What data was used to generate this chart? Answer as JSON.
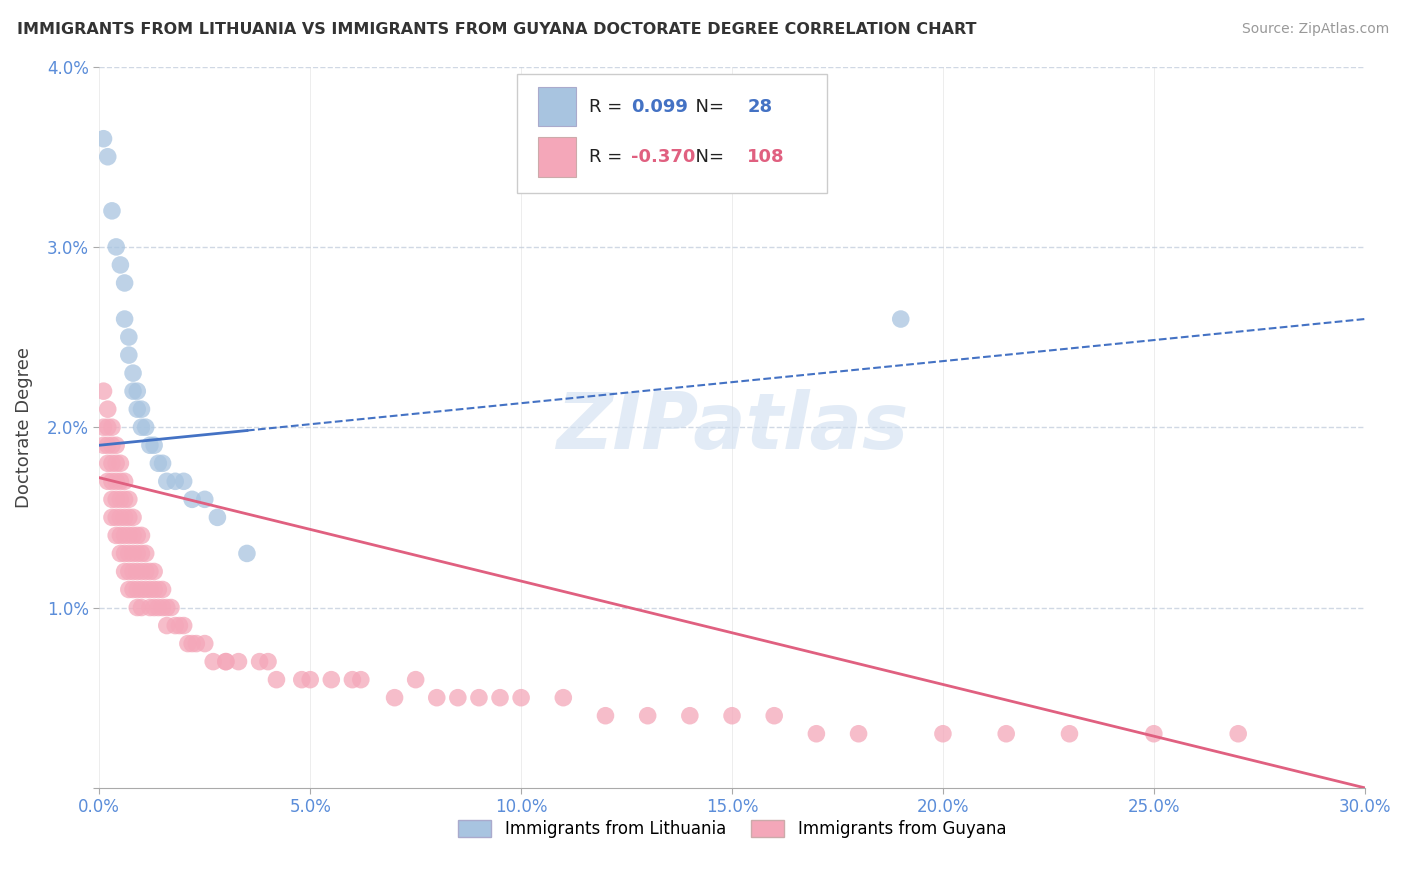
{
  "title": "IMMIGRANTS FROM LITHUANIA VS IMMIGRANTS FROM GUYANA DOCTORATE DEGREE CORRELATION CHART",
  "source": "Source: ZipAtlas.com",
  "ylabel": "Doctorate Degree",
  "xlim": [
    0.0,
    0.3
  ],
  "ylim": [
    0.0,
    0.04
  ],
  "xticks": [
    0.0,
    0.05,
    0.1,
    0.15,
    0.2,
    0.25,
    0.3
  ],
  "yticks": [
    0.0,
    0.01,
    0.02,
    0.03,
    0.04
  ],
  "xtick_labels": [
    "0.0%",
    "5.0%",
    "10.0%",
    "15.0%",
    "20.0%",
    "25.0%",
    "30.0%"
  ],
  "ytick_labels": [
    "",
    "1.0%",
    "2.0%",
    "3.0%",
    "4.0%"
  ],
  "legend_labels": [
    "Immigrants from Lithuania",
    "Immigrants from Guyana"
  ],
  "r_lithuania": 0.099,
  "n_lithuania": 28,
  "r_guyana": -0.37,
  "n_guyana": 108,
  "color_lithuania": "#a8c4e0",
  "color_guyana": "#f4a7b9",
  "line_color_lithuania": "#4472c4",
  "line_color_guyana": "#e06080",
  "background_color": "#ffffff",
  "grid_color": "#d0d8e4",
  "lit_line_y0": 0.019,
  "lit_line_y1": 0.026,
  "lit_line_solid_x1": 0.035,
  "guy_line_y0": 0.0172,
  "guy_line_y1": 0.0,
  "lithuania_x": [
    0.001,
    0.002,
    0.003,
    0.004,
    0.005,
    0.006,
    0.006,
    0.007,
    0.007,
    0.008,
    0.008,
    0.009,
    0.009,
    0.01,
    0.01,
    0.011,
    0.012,
    0.013,
    0.014,
    0.015,
    0.016,
    0.018,
    0.02,
    0.022,
    0.025,
    0.028,
    0.035,
    0.19
  ],
  "lithuania_y": [
    0.036,
    0.035,
    0.032,
    0.03,
    0.029,
    0.028,
    0.026,
    0.025,
    0.024,
    0.023,
    0.022,
    0.022,
    0.021,
    0.021,
    0.02,
    0.02,
    0.019,
    0.019,
    0.018,
    0.018,
    0.017,
    0.017,
    0.017,
    0.016,
    0.016,
    0.015,
    0.013,
    0.026
  ],
  "guyana_x": [
    0.001,
    0.001,
    0.001,
    0.002,
    0.002,
    0.002,
    0.002,
    0.002,
    0.003,
    0.003,
    0.003,
    0.003,
    0.003,
    0.003,
    0.004,
    0.004,
    0.004,
    0.004,
    0.004,
    0.004,
    0.005,
    0.005,
    0.005,
    0.005,
    0.005,
    0.005,
    0.006,
    0.006,
    0.006,
    0.006,
    0.006,
    0.006,
    0.007,
    0.007,
    0.007,
    0.007,
    0.007,
    0.007,
    0.008,
    0.008,
    0.008,
    0.008,
    0.008,
    0.009,
    0.009,
    0.009,
    0.009,
    0.009,
    0.01,
    0.01,
    0.01,
    0.01,
    0.01,
    0.011,
    0.011,
    0.011,
    0.012,
    0.012,
    0.012,
    0.013,
    0.013,
    0.013,
    0.014,
    0.014,
    0.015,
    0.015,
    0.016,
    0.016,
    0.017,
    0.018,
    0.019,
    0.02,
    0.021,
    0.022,
    0.023,
    0.025,
    0.027,
    0.03,
    0.033,
    0.038,
    0.042,
    0.048,
    0.055,
    0.062,
    0.07,
    0.08,
    0.09,
    0.1,
    0.11,
    0.12,
    0.13,
    0.14,
    0.15,
    0.16,
    0.17,
    0.18,
    0.2,
    0.215,
    0.23,
    0.25,
    0.27,
    0.03,
    0.04,
    0.05,
    0.06,
    0.075,
    0.085,
    0.095
  ],
  "guyana_y": [
    0.022,
    0.02,
    0.019,
    0.021,
    0.02,
    0.019,
    0.018,
    0.017,
    0.02,
    0.019,
    0.018,
    0.017,
    0.016,
    0.015,
    0.019,
    0.018,
    0.017,
    0.016,
    0.015,
    0.014,
    0.018,
    0.017,
    0.016,
    0.015,
    0.014,
    0.013,
    0.017,
    0.016,
    0.015,
    0.014,
    0.013,
    0.012,
    0.016,
    0.015,
    0.014,
    0.013,
    0.012,
    0.011,
    0.015,
    0.014,
    0.013,
    0.012,
    0.011,
    0.014,
    0.013,
    0.012,
    0.011,
    0.01,
    0.014,
    0.013,
    0.012,
    0.011,
    0.01,
    0.013,
    0.012,
    0.011,
    0.012,
    0.011,
    0.01,
    0.012,
    0.011,
    0.01,
    0.011,
    0.01,
    0.011,
    0.01,
    0.01,
    0.009,
    0.01,
    0.009,
    0.009,
    0.009,
    0.008,
    0.008,
    0.008,
    0.008,
    0.007,
    0.007,
    0.007,
    0.007,
    0.006,
    0.006,
    0.006,
    0.006,
    0.005,
    0.005,
    0.005,
    0.005,
    0.005,
    0.004,
    0.004,
    0.004,
    0.004,
    0.004,
    0.003,
    0.003,
    0.003,
    0.003,
    0.003,
    0.003,
    0.003,
    0.007,
    0.007,
    0.006,
    0.006,
    0.006,
    0.005,
    0.005
  ]
}
